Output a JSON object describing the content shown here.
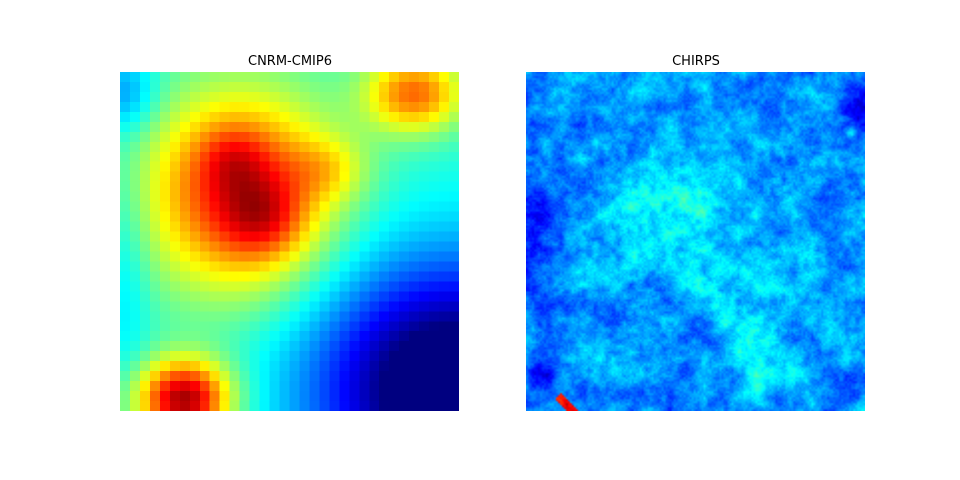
{
  "chart_data": [
    {
      "type": "heatmap",
      "title": "CNRM-CMIP6",
      "colormap": "jet",
      "grid": false,
      "axes_visible": false,
      "resolution": [
        34,
        34
      ]
    },
    {
      "type": "heatmap",
      "title": "CHIRPS",
      "colormap": "jet",
      "grid": false,
      "axes_visible": false,
      "resolution": [
        170,
        170
      ]
    }
  ]
}
